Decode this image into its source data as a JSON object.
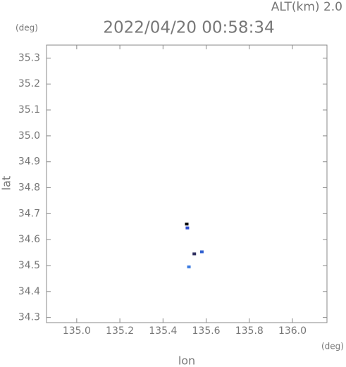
{
  "chart_data": {
    "type": "scatter",
    "title": "2022/04/20 00:58:34",
    "altitude_label": "ALT(km) 2.0",
    "y_unit": "(deg)",
    "x_unit": "(deg)",
    "xlabel": "lon",
    "ylabel": "lat",
    "x": [
      135.51,
      135.513,
      135.52,
      135.545,
      135.58
    ],
    "values": [
      34.66,
      34.645,
      34.495,
      34.545,
      34.553
    ],
    "colors": [
      "#000000",
      "#3050d0",
      "#3a7ae0",
      "#303060",
      "#3060d0"
    ],
    "xlim": [
      134.86,
      136.16
    ],
    "ylim": [
      34.28,
      35.35
    ],
    "xticks": [
      {
        "value": 135.0,
        "label": "135.0"
      },
      135.2,
      135.4,
      135.6,
      135.8,
      {
        "value": 136.0,
        "label": "136.0"
      }
    ],
    "yticks": [
      34.3,
      34.4,
      34.5,
      34.6,
      34.7,
      34.8,
      34.9,
      {
        "value": 35.0,
        "label": "35.0"
      },
      35.1,
      35.2,
      35.3
    ]
  }
}
